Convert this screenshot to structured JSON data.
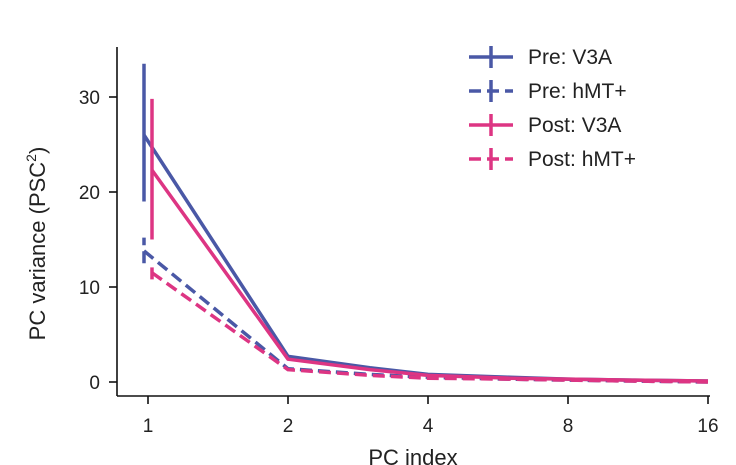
{
  "chart_data": {
    "type": "line",
    "title": "",
    "xlabel": "PC index",
    "ylabel_main": "PC variance (PSC",
    "ylabel_sup": "2",
    "ylabel_close": ")",
    "x_scale": "log2",
    "x": [
      1,
      2,
      3,
      4,
      6,
      8,
      11,
      16
    ],
    "x_ticks": [
      1,
      2,
      4,
      8,
      16
    ],
    "x_tick_labels": [
      "1",
      "2",
      "4",
      "8",
      "16"
    ],
    "y_ticks": [
      0,
      10,
      20,
      30
    ],
    "y_tick_labels": [
      "0",
      "10",
      "20",
      "30"
    ],
    "ylim": [
      -1.5,
      35
    ],
    "grid": false,
    "legend_position": "top-right",
    "series": [
      {
        "name": "Pre: V3A",
        "color": "#4a58a6",
        "dashed": false,
        "values": [
          26.0,
          2.7,
          1.5,
          0.8,
          0.5,
          0.3,
          0.2,
          0.1
        ],
        "err_low": [
          19.0,
          null,
          null,
          null,
          null,
          null,
          null,
          null
        ],
        "err_high": [
          33.5,
          null,
          null,
          null,
          null,
          null,
          null,
          null
        ]
      },
      {
        "name": "Pre: hMT+",
        "color": "#4a58a6",
        "dashed": true,
        "values": [
          13.8,
          1.4,
          0.8,
          0.5,
          0.3,
          0.2,
          0.1,
          0.0
        ],
        "err_low": [
          12.5,
          null,
          null,
          null,
          null,
          null,
          null,
          null
        ],
        "err_high": [
          15.2,
          null,
          null,
          null,
          null,
          null,
          null,
          null
        ]
      },
      {
        "name": "Post: V3A",
        "color": "#dd3583",
        "dashed": false,
        "values": [
          22.3,
          2.4,
          1.3,
          0.7,
          0.4,
          0.3,
          0.2,
          0.1
        ],
        "err_low": [
          15.0,
          null,
          null,
          null,
          null,
          null,
          null,
          null
        ],
        "err_high": [
          29.8,
          null,
          null,
          null,
          null,
          null,
          null,
          null
        ]
      },
      {
        "name": "Post: hMT+",
        "color": "#dd3583",
        "dashed": true,
        "values": [
          11.5,
          1.3,
          0.7,
          0.4,
          0.3,
          0.2,
          0.1,
          0.0
        ],
        "err_low": [
          10.8,
          null,
          null,
          null,
          null,
          null,
          null,
          null
        ],
        "err_high": [
          12.6,
          null,
          null,
          null,
          null,
          null,
          null,
          null
        ]
      }
    ]
  }
}
